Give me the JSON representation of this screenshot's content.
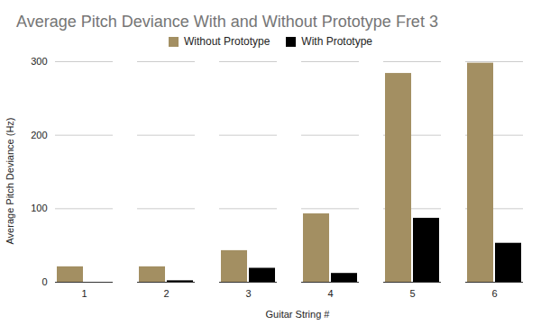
{
  "chart_data": {
    "type": "bar",
    "title": "Average Pitch Deviance With and Without Prototype Fret 3",
    "x_label": "Guitar String #",
    "y_label": "Average Pitch Deviance (Hz)",
    "categories": [
      "1",
      "2",
      "3",
      "4",
      "5",
      "6"
    ],
    "series": [
      {
        "name": "Without Prototype",
        "color": "#a38f62",
        "values": [
          21,
          21,
          43,
          93,
          284,
          298
        ]
      },
      {
        "name": "With Prototype",
        "color": "#000000",
        "values": [
          0,
          2,
          19,
          12,
          87,
          53
        ]
      }
    ],
    "ylim": [
      0,
      300
    ],
    "yticks": [
      0,
      100,
      200,
      300
    ],
    "grid": true,
    "legend": "top"
  }
}
